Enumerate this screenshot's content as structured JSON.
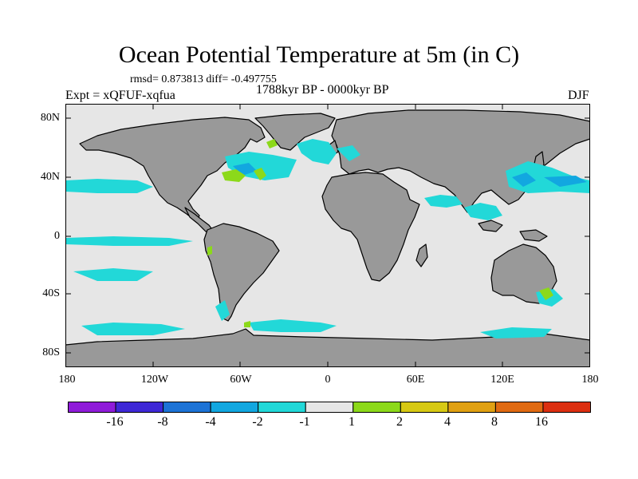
{
  "title": "Ocean Potential Temperature at 5m (in C)",
  "stats": "rmsd= 0.873813 diff= -0.497755",
  "experiment": "Expt = xQFUF-xqfua",
  "period": "1788kyr BP - 0000kyr BP",
  "season": "DJF",
  "y_ticks": [
    "80N",
    "40N",
    "0",
    "40S",
    "80S"
  ],
  "x_ticks": [
    "180",
    "120W",
    "60W",
    "0",
    "60E",
    "120E",
    "180"
  ],
  "colorbar": {
    "colors": [
      "#8f1bd9",
      "#3e28d6",
      "#1d73d6",
      "#12a7e0",
      "#22d8d8",
      "#e6e6e6",
      "#8cd91a",
      "#d7c914",
      "#e0a012",
      "#e06a12",
      "#dc2f10"
    ],
    "labels": [
      "-16",
      "-8",
      "-4",
      "-2",
      "-1",
      "1",
      "2",
      "4",
      "8",
      "16"
    ]
  },
  "colors": {
    "land": "#999999",
    "ocean": "#e6e6e6",
    "cool_anomaly": "#22d8d8",
    "cold_anomaly": "#12a7e0",
    "warm_anomaly": "#8cd91a",
    "coastline": "#000000"
  }
}
